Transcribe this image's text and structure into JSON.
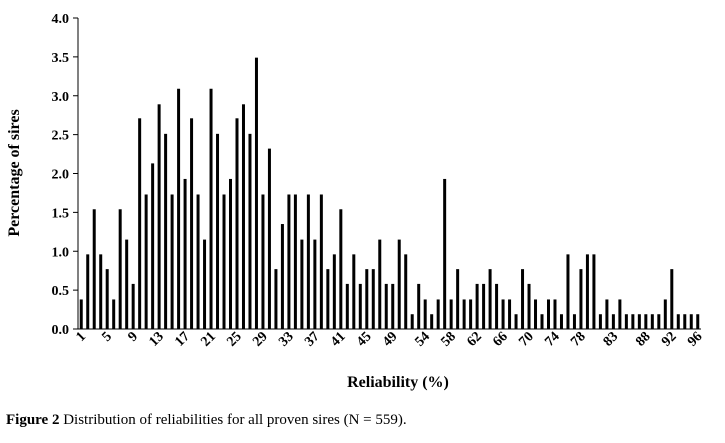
{
  "caption": {
    "label": "Figure 2",
    "text": " Distribution of reliabilities for all proven sires (N = 559)."
  },
  "chart_data": {
    "type": "bar",
    "xlabel": "Reliability  (%)",
    "ylabel": "Percentage of sires",
    "ylim": [
      0,
      4.0
    ],
    "yticks": [
      "0.0",
      "0.5",
      "1.0",
      "1.5",
      "2.0",
      "2.5",
      "3.0",
      "3.5",
      "4.0"
    ],
    "grid": false,
    "legend": "none",
    "bar_color": "#000000",
    "categories": [
      "1",
      "2",
      "3",
      "4",
      "5",
      "6",
      "7",
      "8",
      "9",
      "10",
      "11",
      "12",
      "13",
      "14",
      "15",
      "16",
      "17",
      "18",
      "19",
      "20",
      "21",
      "22",
      "23",
      "24",
      "25",
      "26",
      "27",
      "28",
      "29",
      "30",
      "31",
      "32",
      "33",
      "34",
      "35",
      "36",
      "37",
      "38",
      "39",
      "40",
      "41",
      "42",
      "43",
      "44",
      "45",
      "46",
      "47",
      "48",
      "49",
      "50",
      "51",
      "52",
      "53",
      "54",
      "55",
      "56",
      "57",
      "58",
      "59",
      "60",
      "61",
      "62",
      "63",
      "64",
      "65",
      "66",
      "67",
      "68",
      "69",
      "70",
      "71",
      "72",
      "73",
      "74",
      "75",
      "76",
      "77",
      "78",
      "79",
      "80",
      "81",
      "82",
      "83",
      "84",
      "85",
      "86",
      "87",
      "88",
      "89",
      "90",
      "91",
      "92",
      "93",
      "94",
      "95",
      "96"
    ],
    "values": [
      0.38,
      0.96,
      1.54,
      0.96,
      0.77,
      0.38,
      1.54,
      1.15,
      0.58,
      2.71,
      1.73,
      2.13,
      2.89,
      2.51,
      1.73,
      3.09,
      1.93,
      2.71,
      1.73,
      1.15,
      3.09,
      2.51,
      1.73,
      1.93,
      2.71,
      2.89,
      2.51,
      3.49,
      1.73,
      2.32,
      0.77,
      1.35,
      1.73,
      1.73,
      1.15,
      1.73,
      1.15,
      1.73,
      0.77,
      0.96,
      1.54,
      0.58,
      0.96,
      0.58,
      0.77,
      0.77,
      1.15,
      0.58,
      0.58,
      1.15,
      0.96,
      0.19,
      0.58,
      0.38,
      0.19,
      0.38,
      1.93,
      0.38,
      0.77,
      0.38,
      0.38,
      0.58,
      0.58,
      0.77,
      0.58,
      0.38,
      0.38,
      0.19,
      0.77,
      0.58,
      0.38,
      0.19,
      0.38,
      0.38,
      0.19,
      0.96,
      0.19,
      0.77,
      0.96,
      0.96,
      0.19,
      0.38,
      0.19,
      0.38,
      0.19,
      0.19,
      0.19,
      0.19,
      0.19,
      0.19,
      0.38,
      0.77,
      0.19,
      0.19,
      0.19,
      0.19
    ],
    "xtick_labels": [
      "1",
      "5",
      "9",
      "13",
      "17",
      "21",
      "25",
      "29",
      "33",
      "37",
      "41",
      "45",
      "49",
      "54",
      "58",
      "62",
      "66",
      "70",
      "74",
      "78",
      "83",
      "88",
      "92",
      "96"
    ]
  }
}
